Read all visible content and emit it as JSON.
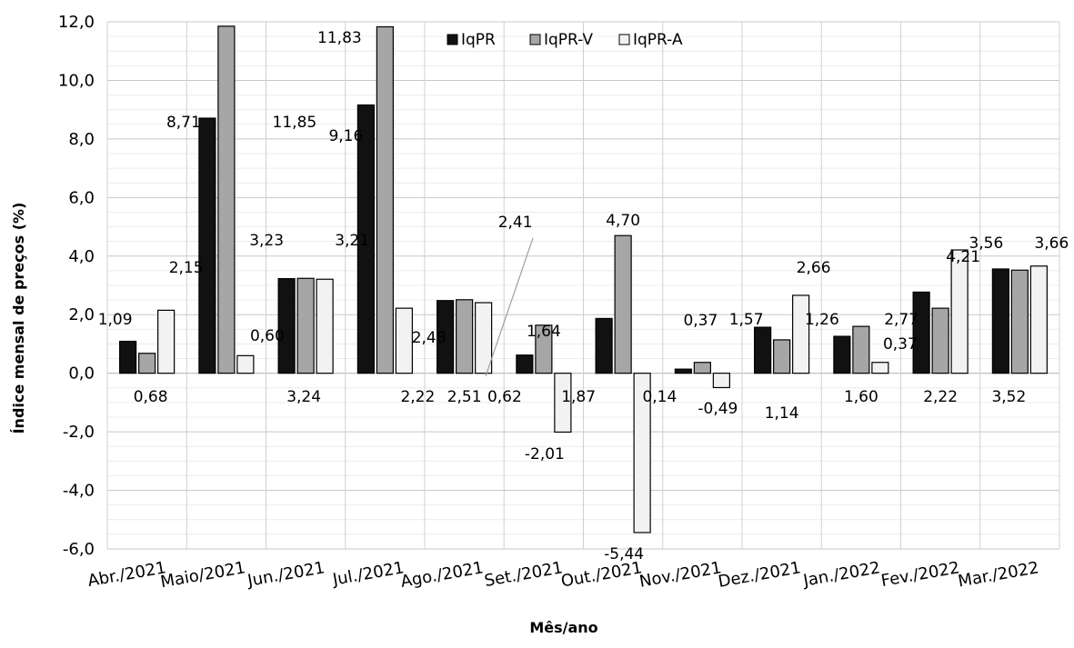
{
  "chart_data": {
    "type": "bar",
    "title": "",
    "xlabel": "Mês/ano",
    "ylabel": "Índice mensal de preços (%)",
    "ylim": [
      -6.0,
      12.0
    ],
    "yticks": [
      "-6,0",
      "-4,0",
      "-2,0",
      "0,0",
      "2,0",
      "4,0",
      "6,0",
      "8,0",
      "10,0",
      "12,0"
    ],
    "grid": true,
    "legend_position": "top",
    "categories": [
      "Abr./2021",
      "Maio/2021",
      "Jun./2021",
      "Jul./2021",
      "Ago./2021",
      "Set./2021",
      "Out./2021",
      "Nov./2021",
      "Dez./2021",
      "Jan./2022",
      "Fev./2022",
      "Mar./2022"
    ],
    "series": [
      {
        "name": "IqPR",
        "color": "#111111",
        "values": [
          1.09,
          8.71,
          3.23,
          9.16,
          2.48,
          0.62,
          1.87,
          0.14,
          1.57,
          1.26,
          2.77,
          3.56
        ],
        "labels": [
          "1,09",
          "8,71",
          "3,23",
          "9,16",
          "2,48",
          "0,62",
          "1,87",
          "0,14",
          "1,57",
          "1,26",
          "2,77",
          "3,56"
        ]
      },
      {
        "name": "IqPR-V",
        "color": "#a6a6a6",
        "values": [
          0.68,
          11.85,
          3.24,
          11.83,
          2.51,
          1.64,
          4.7,
          0.37,
          1.14,
          1.6,
          2.22,
          3.52
        ],
        "labels": [
          "0,68",
          "11,85",
          "3,24",
          "11,83",
          "2,51",
          "1,64",
          "4,70",
          "0,37",
          "1,14",
          "1,60",
          "2,22",
          "3,52"
        ]
      },
      {
        "name": "IqPR-A",
        "color": "#f2f2f2",
        "values": [
          2.15,
          0.6,
          3.21,
          2.22,
          2.41,
          -2.01,
          -5.44,
          -0.49,
          2.66,
          0.37,
          4.21,
          3.66
        ],
        "labels": [
          "2,15",
          "0,60",
          "3,21",
          "2,22",
          "2,41",
          "-2,01",
          "-5,44",
          "-0,49",
          "2,66",
          "0,37",
          "4,21",
          "3,66"
        ]
      }
    ]
  }
}
